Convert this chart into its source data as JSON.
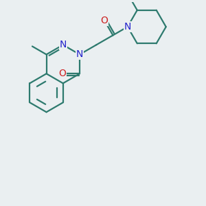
{
  "bg_color": "#eaeff1",
  "bond_color": "#2d7a6e",
  "N_color": "#2222cc",
  "O_color": "#cc2222",
  "bond_width": 1.6,
  "font_size_atom": 10,
  "xlim": [
    0,
    10
  ],
  "ylim": [
    0,
    10
  ]
}
